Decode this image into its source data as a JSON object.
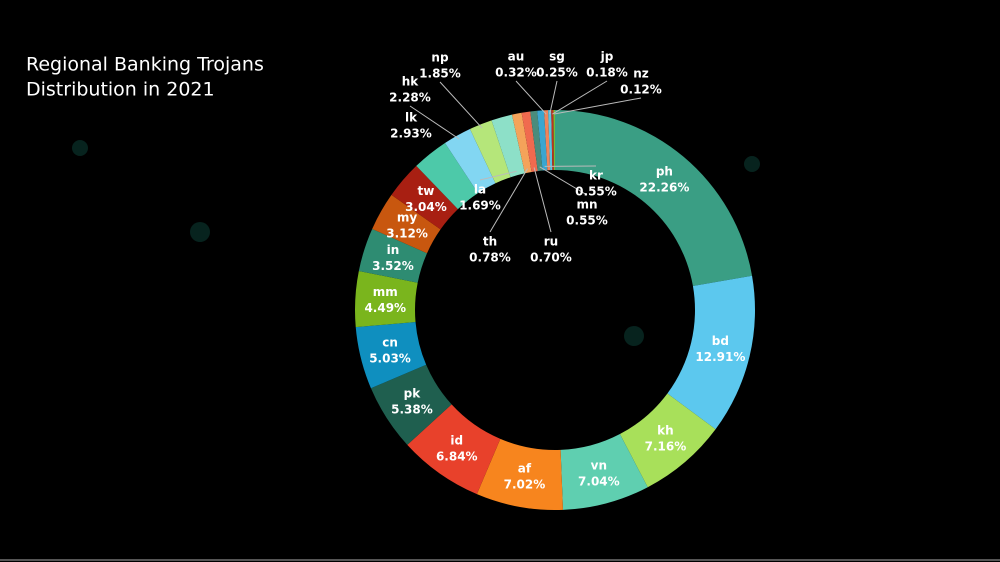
{
  "chart_data": {
    "type": "donut",
    "title": [
      "Regional Banking Trojans",
      "Distribution in 2021"
    ],
    "categories": [
      "ph",
      "bd",
      "kh",
      "vn",
      "af",
      "id",
      "pk",
      "cn",
      "mm",
      "in",
      "my",
      "tw",
      "lk",
      "hk",
      "np",
      "la",
      "th",
      "ru",
      "mn",
      "kr",
      "au",
      "sg",
      "jp",
      "nz"
    ],
    "values": [
      22.26,
      12.91,
      7.16,
      7.04,
      7.02,
      6.84,
      5.38,
      5.03,
      4.49,
      3.52,
      3.12,
      3.04,
      2.93,
      2.28,
      1.85,
      1.69,
      0.78,
      0.7,
      0.55,
      0.55,
      0.32,
      0.25,
      0.18,
      0.12
    ],
    "value_labels": [
      "22.26%",
      "12.91%",
      "7.16%",
      "7.04%",
      "7.02%",
      "6.84%",
      "5.38%",
      "5.03%",
      "4.49%",
      "3.52%",
      "3.12%",
      "3.04%",
      "2.93%",
      "2.28%",
      "1.85%",
      "1.69%",
      "0.78%",
      "0.70%",
      "0.55%",
      "0.55%",
      "0.32%",
      "0.25%",
      "0.18%",
      "0.12%"
    ],
    "colors": [
      "#3a9e84",
      "#5cc8ee",
      "#a8e05a",
      "#5fcfb0",
      "#f7851e",
      "#e8412b",
      "#1f5f4f",
      "#0f8fbf",
      "#7ab51d",
      "#2e8c72",
      "#c8570f",
      "#a81f12",
      "#4dc9a9",
      "#82d6f2",
      "#b5e67a",
      "#8de0c8",
      "#f4a35a",
      "#f06a4f",
      "#4a8c7c",
      "#3aa6d0",
      "#f0845a",
      "#5cc3e0",
      "#c0341e",
      "#6fbf3a"
    ]
  }
}
